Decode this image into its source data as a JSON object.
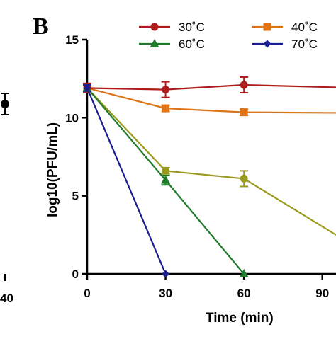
{
  "panel_label": "B",
  "left_panel_fragment": {
    "tick_label": "40"
  },
  "chart_data": {
    "type": "line",
    "title": "",
    "xlabel": "Time (min)",
    "ylabel": "log10(PFU/mL)",
    "xlim": [
      0,
      105
    ],
    "ylim": [
      0,
      15
    ],
    "xticks": [
      0,
      30,
      60,
      90
    ],
    "yticks": [
      0,
      5,
      10,
      15
    ],
    "grid": false,
    "legend_placement": "top",
    "series": [
      {
        "name": "30˚C",
        "color": "#b01c1c",
        "marker": "circle",
        "x": [
          0,
          30,
          60,
          105
        ],
        "y": [
          11.9,
          11.8,
          12.1,
          11.9
        ],
        "err": [
          0.3,
          0.5,
          0.5,
          0
        ]
      },
      {
        "name": "40˚C",
        "color": "#de7416",
        "marker": "square",
        "x": [
          0,
          30,
          60,
          105
        ],
        "y": [
          11.9,
          10.6,
          10.35,
          10.3
        ],
        "err": [
          0.2,
          0.2,
          0.2,
          0
        ]
      },
      {
        "name": "60˚C",
        "color": "#1f7a2a",
        "marker": "triangle",
        "x": [
          0,
          30,
          60
        ],
        "y": [
          11.9,
          6.0,
          0
        ],
        "err": [
          0.2,
          0.3,
          0
        ]
      },
      {
        "name": "70˚C",
        "color": "#1a1f8f",
        "marker": "diamond",
        "x": [
          0,
          30
        ],
        "y": [
          11.9,
          0
        ],
        "err": [
          0.2,
          0
        ]
      },
      {
        "name": "",
        "color": "#9a9a1e",
        "marker": "circle",
        "x": [
          0,
          30,
          60,
          105
        ],
        "y": [
          11.9,
          6.6,
          6.1,
          1.5
        ],
        "err": [
          0.2,
          0.2,
          0.5,
          0
        ]
      }
    ]
  }
}
